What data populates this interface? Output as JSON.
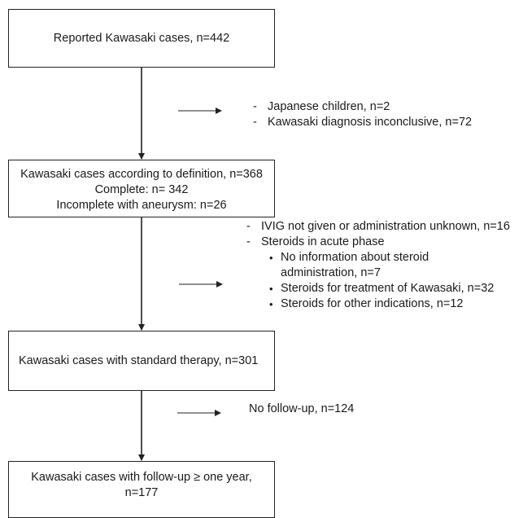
{
  "boxes": {
    "reported": {
      "line1": "Reported Kawasaki cases, n=442"
    },
    "definition": {
      "line1": "Kawasaki cases according to definition, n=368",
      "line2": "Complete: n= 342",
      "line3": "Incomplete with aneurysm: n=26"
    },
    "standard": {
      "line1": "Kawasaki cases with standard therapy, n=301"
    },
    "followup": {
      "line1": "Kawasaki cases with follow-up ≥ one year,",
      "line2": "n=177"
    }
  },
  "exclusions": {
    "first": [
      "Japanese children, n=2",
      "Kawasaki diagnosis inconclusive, n=72"
    ],
    "second": {
      "ivig": "IVIG not given or administration unknown, n=16",
      "steroids": "Steroids in acute phase",
      "sub": [
        {
          "line1": "No information about steroid",
          "line2": "administration, n=7"
        },
        {
          "line1": "Steroids for treatment of Kawasaki, n=32"
        },
        {
          "line1": "Steroids for other indications, n=12"
        }
      ]
    },
    "third": "No follow-up, n=124"
  },
  "glyphs": {
    "dash": "-",
    "bullet": "•"
  }
}
